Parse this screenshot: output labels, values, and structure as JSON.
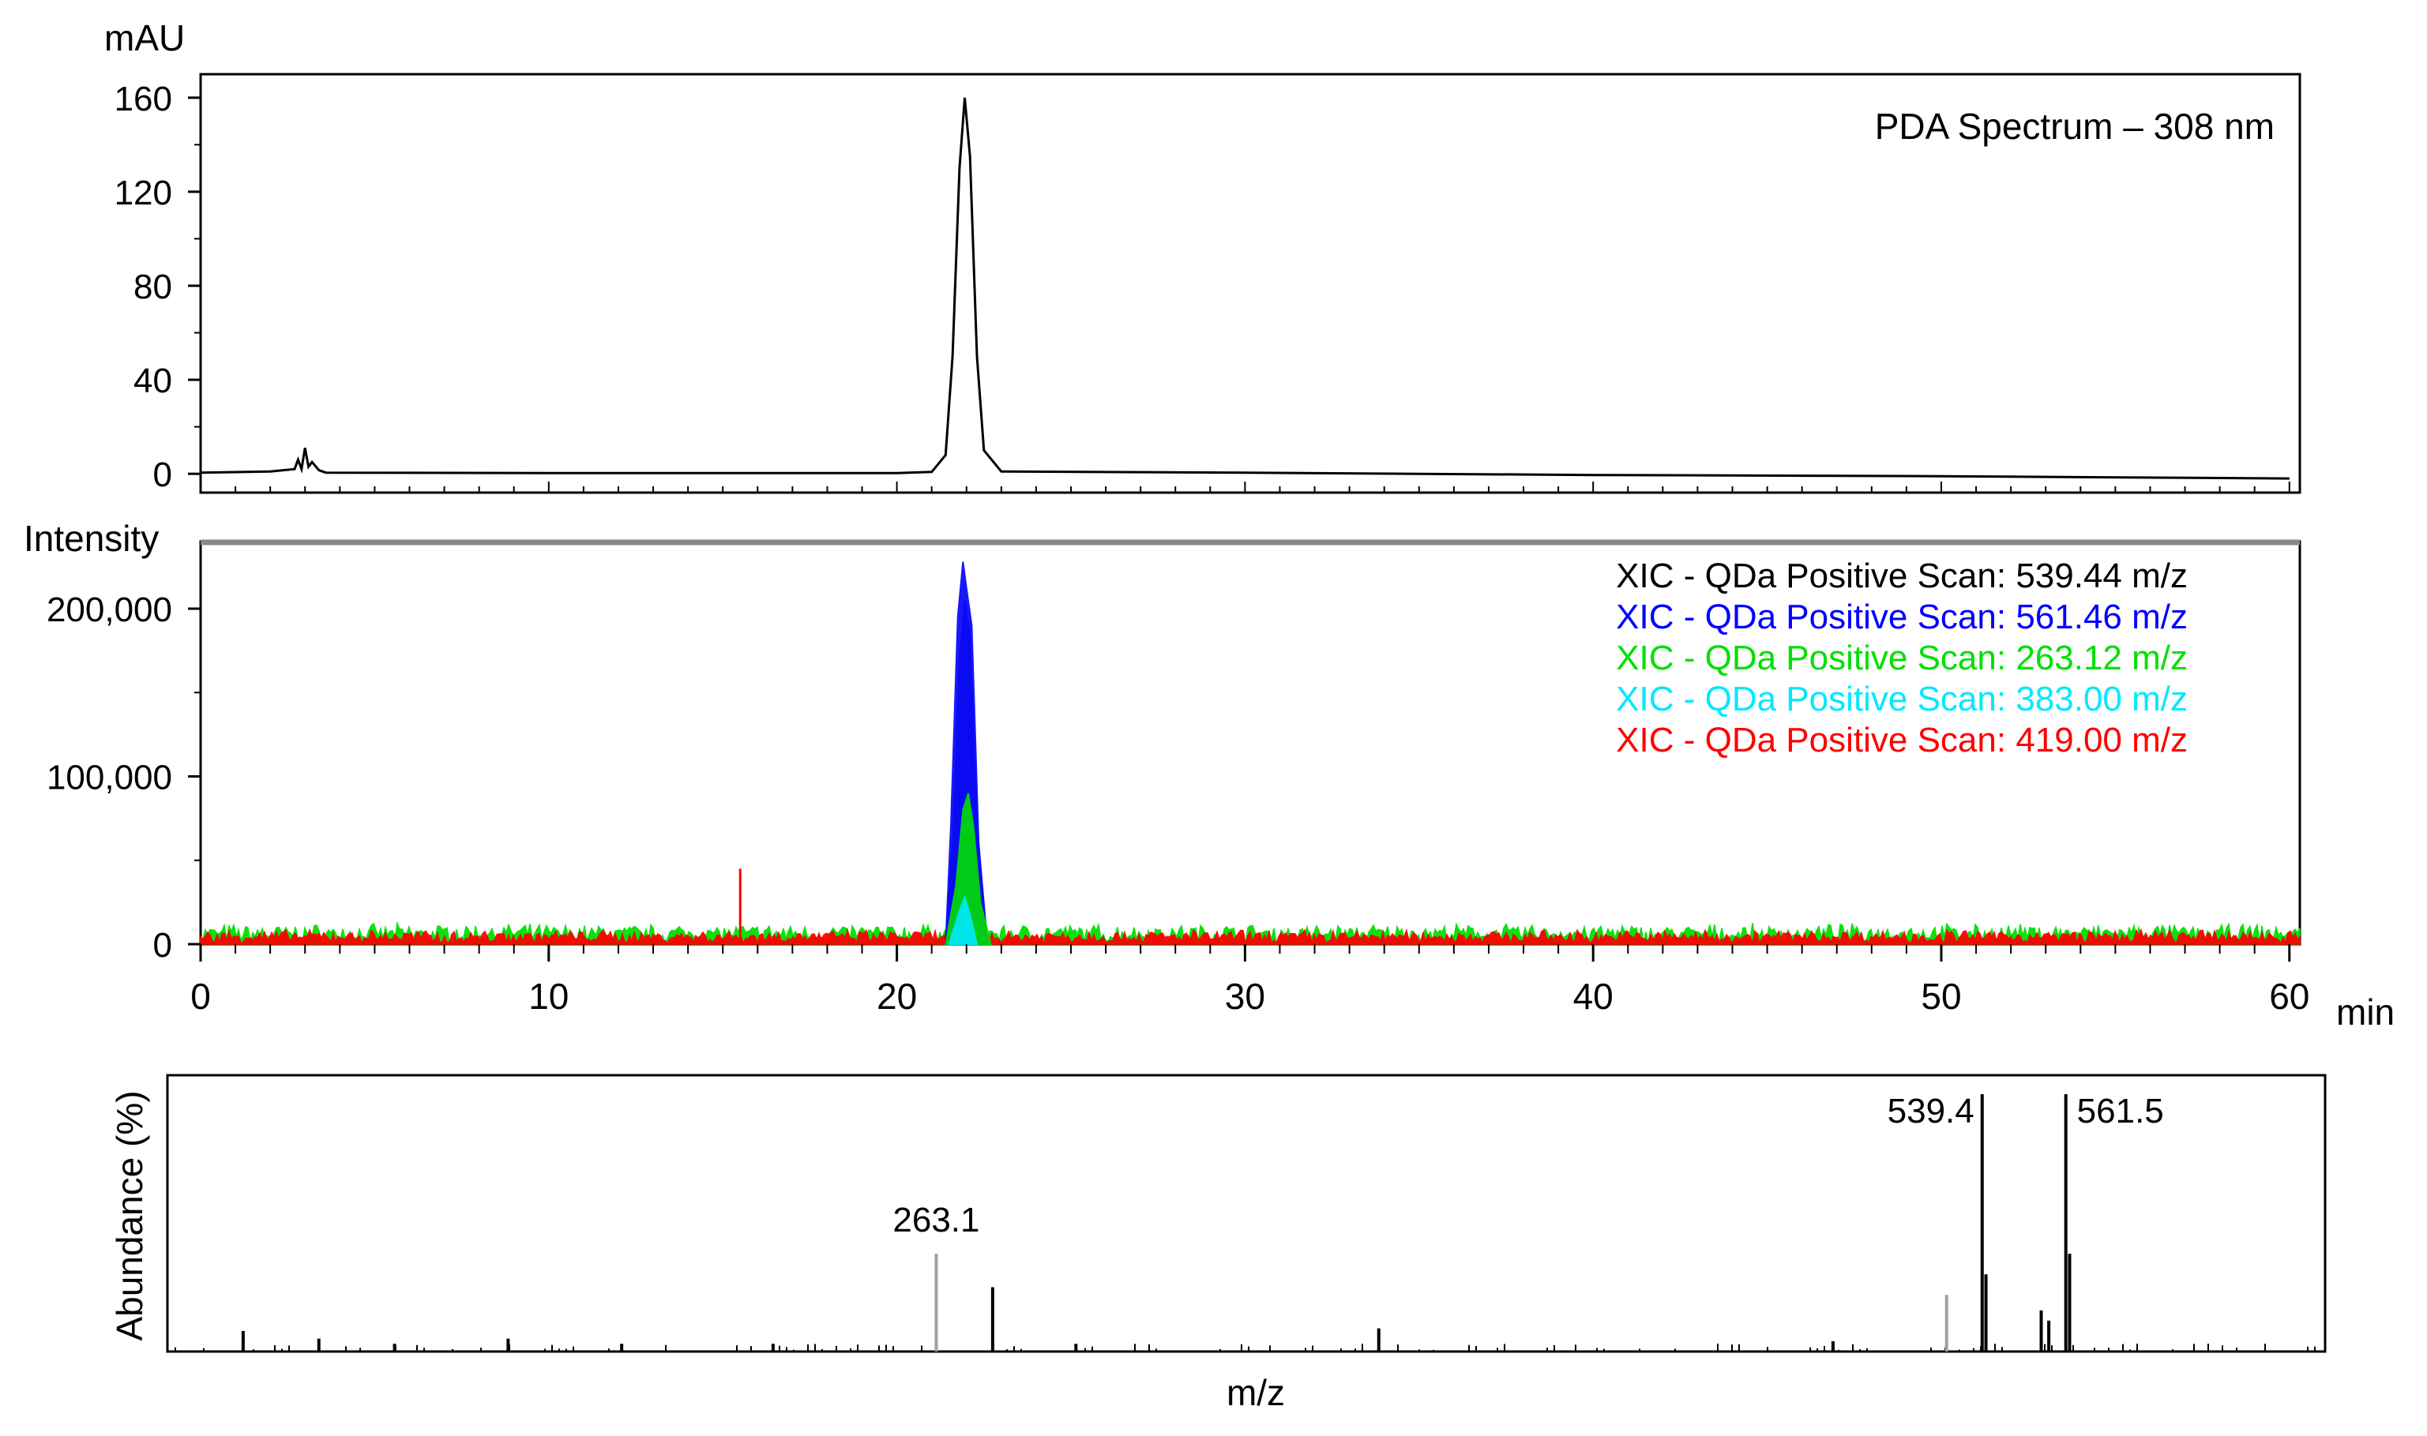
{
  "chart_data": [
    {
      "type": "line",
      "ylabel": "mAU",
      "ylim": [
        -8,
        170
      ],
      "yticks": [
        0,
        40,
        80,
        120,
        160
      ],
      "ytick_labels": [
        "0",
        "40",
        "80",
        "120",
        "160"
      ],
      "xlim": [
        0,
        60.3
      ],
      "annotation": "PDA Spectrum – 308 nm",
      "grid": false,
      "series": [
        {
          "color": "#000000",
          "x": [
            0,
            2.0,
            2.7,
            2.8,
            2.9,
            3.0,
            3.1,
            3.2,
            3.4,
            3.6,
            10,
            20,
            21.0,
            21.4,
            21.6,
            21.8,
            21.95,
            22.1,
            22.3,
            22.5,
            23.0,
            30,
            40,
            50,
            60
          ],
          "y": [
            0.5,
            1,
            2,
            6,
            2,
            11,
            3,
            5,
            1.5,
            0.5,
            0.3,
            0.3,
            0.8,
            8,
            50,
            130,
            160,
            135,
            50,
            10,
            1,
            0.5,
            -0.5,
            -1,
            -2
          ]
        }
      ]
    },
    {
      "type": "area",
      "ylabel": "Intensity",
      "ylim": [
        0,
        240000
      ],
      "yticks": [
        0,
        100000,
        200000
      ],
      "ytick_labels": [
        "0",
        "100,000",
        "200,000"
      ],
      "xlim": [
        0,
        60.3
      ],
      "xticks": [
        0,
        10,
        20,
        30,
        40,
        50,
        60
      ],
      "xtick_labels": [
        "0",
        "10",
        "20",
        "30",
        "40",
        "50",
        "60"
      ],
      "xlabel": "min",
      "grid": false,
      "legend_position": "top-right",
      "noise_level": 9000,
      "series": [
        {
          "name": "XIC - QDa Positive Scan: 539.44 m/z",
          "color": "#000000",
          "x": [
            21.4,
            21.6,
            21.8,
            21.95,
            22.1,
            22.3,
            22.6
          ],
          "y": [
            0,
            60000,
            170000,
            205000,
            185000,
            70000,
            0
          ]
        },
        {
          "name": "XIC - QDa Positive Scan: 561.46 m/z",
          "color": "#0000ff",
          "x": [
            21.4,
            21.55,
            21.75,
            21.9,
            22.0,
            22.15,
            22.35,
            22.6
          ],
          "y": [
            0,
            70000,
            195000,
            228000,
            212000,
            190000,
            60000,
            0
          ]
        },
        {
          "name": "XIC - QDa Positive Scan: 263.12 m/z",
          "color": "#00e000",
          "x": [
            21.4,
            21.7,
            21.9,
            22.05,
            22.2,
            22.4,
            22.7
          ],
          "y": [
            0,
            35000,
            80000,
            90000,
            70000,
            25000,
            0
          ]
        },
        {
          "name": "XIC - QDa Positive Scan: 383.00 m/z",
          "color": "#00e8ff",
          "x": [
            21.5,
            21.8,
            21.95,
            22.1,
            22.3
          ],
          "y": [
            0,
            20000,
            28000,
            18000,
            0
          ]
        },
        {
          "name": "XIC - QDa Positive Scan: 419.00 m/z",
          "color": "#ff0000",
          "x": [
            15.5
          ],
          "y": [
            45000
          ]
        }
      ]
    },
    {
      "type": "bar",
      "ylabel": "Abundance (%)",
      "xlabel": "m/z",
      "xlim": [
        60,
        630
      ],
      "ylim": [
        0,
        100
      ],
      "grid": false,
      "label_color": "#000000",
      "series": [
        {
          "name": "spectrum",
          "x": [
            80,
            100,
            120,
            150,
            180,
            220,
            263.1,
            278,
            300,
            380,
            500,
            530,
            539.4,
            540.4,
            555,
            557,
            561.5,
            562.5
          ],
          "y": [
            8,
            5,
            3,
            5,
            3,
            3,
            38,
            25,
            3,
            9,
            4,
            22,
            100,
            30,
            16,
            12,
            100,
            38
          ],
          "colors": [
            "#000000",
            "#000000",
            "#000000",
            "#000000",
            "#000000",
            "#000000",
            "#a0a0a0",
            "#000000",
            "#000000",
            "#000000",
            "#000000",
            "#a0a0a0",
            "#000000",
            "#000000",
            "#000000",
            "#000000",
            "#000000",
            "#000000"
          ]
        }
      ],
      "peak_labels": [
        {
          "x": 263.1,
          "text": "263.1"
        },
        {
          "x": 539.4,
          "text": "539.4"
        },
        {
          "x": 561.5,
          "text": "561.5"
        }
      ]
    }
  ]
}
